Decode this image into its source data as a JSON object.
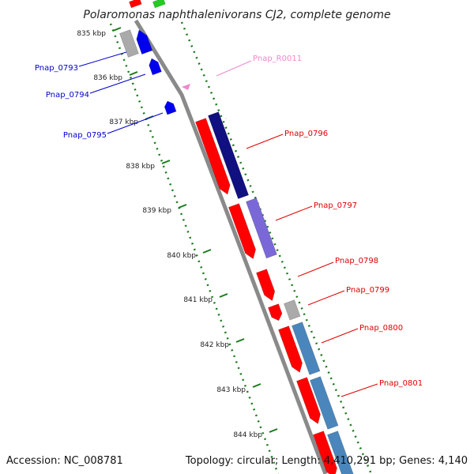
{
  "title": "Polaromonas naphthalenivorans CJ2, complete genome",
  "footer": {
    "accession": "Accession: NC_008781",
    "summary": "Topology: circular; Length: 4,410,291 bp; Genes: 4,140"
  },
  "colors": {
    "backbone": "#8a8a8a",
    "ruler": "#1a7a1a",
    "cds_fwd": "#ff0000",
    "label_red": "#e00000",
    "label_blue": "#0000cc",
    "label_pink": "#ee88cc"
  },
  "ruler": {
    "tick_labels": [
      "835 kbp",
      "836 kbp",
      "837 kbp",
      "838 kbp",
      "839 kbp",
      "840 kbp",
      "841 kbp",
      "842 kbp",
      "843 kbp",
      "844 kbp"
    ]
  },
  "genes": [
    {
      "name": "Pnap_0793",
      "strand": "-",
      "color": "#0000ee"
    },
    {
      "name": "Pnap_0794",
      "strand": "-",
      "color": "#0000ee"
    },
    {
      "name": "Pnap_0795",
      "strand": "-",
      "color": "#0000ee"
    },
    {
      "name": "Pnap_R0011",
      "strand": "-",
      "color": "#ee88cc"
    },
    {
      "name": "Pnap_0796",
      "strand": "+",
      "color": "#ff0000"
    },
    {
      "name": "Pnap_0797",
      "strand": "+",
      "color": "#ff0000"
    },
    {
      "name": "Pnap_0798",
      "strand": "+",
      "color": "#ff0000"
    },
    {
      "name": "Pnap_0799",
      "strand": "+",
      "color": "#ff0000"
    },
    {
      "name": "Pnap_0800",
      "strand": "+",
      "color": "#ff0000"
    },
    {
      "name": "Pnap_0801",
      "strand": "+",
      "color": "#ff0000"
    }
  ]
}
